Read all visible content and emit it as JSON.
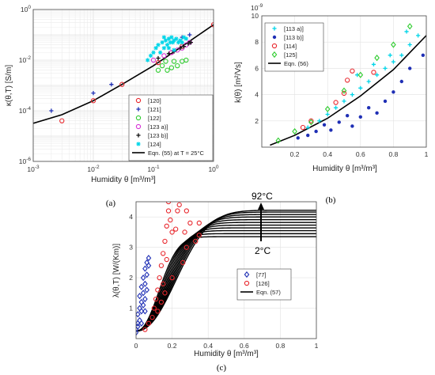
{
  "chart_data": [
    {
      "panel": "(a)",
      "type": "scatter",
      "xlabel": "Humidity θ [m³/m³]",
      "ylabel": "κ(θ,T) [S/m]",
      "xscale": "log",
      "yscale": "log",
      "xlim": [
        0.001,
        1
      ],
      "ylim": [
        1e-06,
        1
      ],
      "xticks": [
        "10^-3",
        "10^-2",
        "10^-1",
        "10^0"
      ],
      "yticks": [
        "10^-6",
        "10^-4",
        "10^-2",
        "10^0"
      ],
      "grid": true,
      "legend_position": "bottom-right",
      "series": [
        {
          "name": "[120]",
          "marker": "circle-open",
          "color": "#e8262c",
          "points": [
            [
              0.003,
              4e-05
            ],
            [
              0.01,
              0.00025
            ],
            [
              0.03,
              0.0011
            ],
            [
              0.12,
              0.008
            ],
            [
              0.2,
              0.02
            ],
            [
              0.3,
              0.035
            ],
            [
              1.0,
              0.25
            ]
          ]
        },
        {
          "name": "[121]",
          "marker": "plus",
          "color": "#1f2fb5",
          "points": [
            [
              0.002,
              0.0001
            ],
            [
              0.01,
              0.0005
            ],
            [
              0.02,
              0.0011
            ],
            [
              0.3,
              0.08
            ],
            [
              0.4,
              0.1
            ]
          ]
        },
        {
          "name": "[122]",
          "marker": "circle-open",
          "color": "#2ecc2e",
          "points": [
            [
              0.12,
              0.004
            ],
            [
              0.14,
              0.006
            ],
            [
              0.17,
              0.004
            ],
            [
              0.2,
              0.005
            ],
            [
              0.25,
              0.006
            ],
            [
              0.3,
              0.009
            ],
            [
              0.35,
              0.01
            ],
            [
              0.16,
              0.009
            ],
            [
              0.22,
              0.009
            ]
          ]
        },
        {
          "name": "[123 a)]",
          "marker": "circle-open",
          "color": "#d633d6",
          "points": [
            [
              0.1,
              0.01
            ],
            [
              0.15,
              0.015
            ],
            [
              0.2,
              0.02
            ],
            [
              0.25,
              0.025
            ],
            [
              0.3,
              0.03
            ],
            [
              0.35,
              0.04
            ],
            [
              0.4,
              0.05
            ]
          ]
        },
        {
          "name": "[123 b)]",
          "marker": "plus",
          "color": "#111111",
          "points": [
            [
              0.12,
              0.012
            ],
            [
              0.18,
              0.018
            ],
            [
              0.22,
              0.022
            ],
            [
              0.28,
              0.03
            ],
            [
              0.32,
              0.035
            ],
            [
              0.38,
              0.045
            ],
            [
              0.42,
              0.05
            ]
          ]
        },
        {
          "name": "[124]",
          "marker": "asterisk",
          "color": "#00d5e8",
          "points": [
            [
              0.08,
              0.01
            ],
            [
              0.09,
              0.015
            ],
            [
              0.1,
              0.02
            ],
            [
              0.11,
              0.03
            ],
            [
              0.12,
              0.04
            ],
            [
              0.13,
              0.02
            ],
            [
              0.14,
              0.05
            ],
            [
              0.15,
              0.03
            ],
            [
              0.16,
              0.06
            ],
            [
              0.17,
              0.04
            ],
            [
              0.18,
              0.07
            ],
            [
              0.19,
              0.05
            ],
            [
              0.2,
              0.08
            ],
            [
              0.21,
              0.05
            ],
            [
              0.22,
              0.06
            ],
            [
              0.24,
              0.07
            ],
            [
              0.26,
              0.05
            ],
            [
              0.28,
              0.06
            ],
            [
              0.3,
              0.05
            ],
            [
              0.32,
              0.08
            ],
            [
              0.35,
              0.07
            ],
            [
              0.15,
              0.08
            ],
            [
              0.18,
              0.03
            ],
            [
              0.22,
              0.025
            ]
          ]
        }
      ],
      "fit_line": {
        "name": "Eqn. (55) at T = 25°C",
        "color": "#000000",
        "points": [
          [
            0.001,
            3.2e-05
          ],
          [
            0.003,
            7e-05
          ],
          [
            0.01,
            0.00025
          ],
          [
            0.03,
            0.0011
          ],
          [
            0.1,
            0.006
          ],
          [
            0.3,
            0.035
          ],
          [
            1.0,
            0.25
          ]
        ]
      }
    },
    {
      "panel": "(b)",
      "type": "scatter",
      "xlabel": "Humidity θ [m³/m³]",
      "ylabel": "k(θ) [m²/Vs]",
      "yexponent": "10^-9",
      "xlim": [
        0,
        1
      ],
      "ylim": [
        0,
        10
      ],
      "xticks": [
        "0.2",
        "0.4",
        "0.6",
        "0.8",
        "1"
      ],
      "yticks": [
        "2",
        "4",
        "6",
        "8",
        "10"
      ],
      "grid": true,
      "legend_position": "top-left",
      "series": [
        {
          "name": "[113 a)]",
          "marker": "plus",
          "color": "#00d5e8",
          "points": [
            [
              0.28,
              1.5
            ],
            [
              0.35,
              2.0
            ],
            [
              0.4,
              2.5
            ],
            [
              0.45,
              3.0
            ],
            [
              0.5,
              3.5
            ],
            [
              0.55,
              4.0
            ],
            [
              0.6,
              4.5
            ],
            [
              0.65,
              5.0
            ],
            [
              0.7,
              5.5
            ],
            [
              0.75,
              6.0
            ],
            [
              0.8,
              6.5
            ],
            [
              0.85,
              7.0
            ],
            [
              0.9,
              7.8
            ],
            [
              0.95,
              8.5
            ],
            [
              0.58,
              5.5
            ],
            [
              0.68,
              6.3
            ],
            [
              0.78,
              7.0
            ],
            [
              0.88,
              8.8
            ]
          ]
        },
        {
          "name": "[113 b)]",
          "marker": "dot",
          "color": "#1f2fb5",
          "points": [
            [
              0.22,
              0.7
            ],
            [
              0.28,
              0.9
            ],
            [
              0.33,
              1.2
            ],
            [
              0.38,
              1.7
            ],
            [
              0.42,
              1.3
            ],
            [
              0.47,
              1.9
            ],
            [
              0.52,
              2.4
            ],
            [
              0.55,
              1.6
            ],
            [
              0.6,
              2.3
            ],
            [
              0.65,
              3.0
            ],
            [
              0.7,
              2.6
            ],
            [
              0.75,
              3.5
            ],
            [
              0.8,
              4.2
            ],
            [
              0.85,
              5.0
            ],
            [
              0.9,
              6.0
            ],
            [
              0.98,
              7.0
            ]
          ]
        },
        {
          "name": "[114]",
          "marker": "circle-open",
          "color": "#e8262c",
          "points": [
            [
              0.25,
              1.5
            ],
            [
              0.3,
              2.0
            ],
            [
              0.45,
              3.4
            ],
            [
              0.5,
              4.1
            ],
            [
              0.52,
              5.1
            ],
            [
              0.55,
              5.8
            ],
            [
              0.68,
              5.7
            ]
          ]
        },
        {
          "name": "[125]",
          "marker": "diamond-open",
          "color": "#2ecc2e",
          "points": [
            [
              0.1,
              0.5
            ],
            [
              0.2,
              1.2
            ],
            [
              0.3,
              1.9
            ],
            [
              0.4,
              2.9
            ],
            [
              0.5,
              4.3
            ],
            [
              0.6,
              5.5
            ],
            [
              0.7,
              6.8
            ],
            [
              0.8,
              7.8
            ],
            [
              0.9,
              9.2
            ]
          ]
        }
      ],
      "fit_line": {
        "name": "Eqn. (56)",
        "color": "#000000",
        "points": [
          [
            0.05,
            0.15
          ],
          [
            0.2,
            0.9
          ],
          [
            0.4,
            2.2
          ],
          [
            0.6,
            3.9
          ],
          [
            0.8,
            5.9
          ],
          [
            1.0,
            8.5
          ]
        ]
      }
    },
    {
      "panel": "(c)",
      "type": "line",
      "xlabel": "Humidity θ [m³/m³]",
      "ylabel": "λ(θ,T) [W/(Km)]",
      "xlim": [
        0,
        1
      ],
      "ylim": [
        0,
        4.5
      ],
      "xticks": [
        "0",
        "0.2",
        "0.4",
        "0.6",
        "0.8",
        "1"
      ],
      "yticks": [
        "1",
        "2",
        "3",
        "4"
      ],
      "grid": true,
      "legend_position": "center-right",
      "annotations": [
        {
          "text": "92°C",
          "x": 0.67,
          "y": 4.4
        },
        {
          "text": "2°C",
          "x": 0.67,
          "y": 2.75
        }
      ],
      "curves": {
        "name": "Eqn. (57)",
        "color": "#000000",
        "count": 11,
        "T_labels": [
          "2°C",
          "92°C"
        ],
        "plateau": [
          3.35,
          3.45,
          3.55,
          3.64,
          3.73,
          3.82,
          3.91,
          4.0,
          4.08,
          4.16,
          4.22
        ],
        "offset": [
          0.27,
          0.29,
          0.31,
          0.33,
          0.35,
          0.37,
          0.39,
          0.41,
          0.43,
          0.45,
          0.47
        ]
      },
      "series": [
        {
          "name": "[77]",
          "marker": "diamond-open",
          "color": "#1f2fb5",
          "points": [
            [
              0.0,
              0.3
            ],
            [
              0.01,
              0.5
            ],
            [
              0.01,
              0.8
            ],
            [
              0.02,
              1.0
            ],
            [
              0.02,
              1.4
            ],
            [
              0.03,
              1.2
            ],
            [
              0.03,
              1.7
            ],
            [
              0.04,
              1.5
            ],
            [
              0.04,
              2.0
            ],
            [
              0.05,
              1.8
            ],
            [
              0.05,
              2.3
            ],
            [
              0.06,
              2.1
            ],
            [
              0.06,
              2.5
            ],
            [
              0.07,
              2.4
            ],
            [
              0.07,
              2.65
            ],
            [
              0.02,
              0.6
            ],
            [
              0.03,
              0.9
            ],
            [
              0.04,
              1.1
            ],
            [
              0.05,
              1.3
            ],
            [
              0.06,
              1.6
            ],
            [
              0.01,
              0.4
            ],
            [
              0.0,
              0.2
            ],
            [
              0.03,
              0.5
            ],
            [
              0.05,
              0.9
            ]
          ]
        },
        {
          "name": "[126]",
          "marker": "circle-open",
          "color": "#e8262c",
          "points": [
            [
              0.05,
              0.3
            ],
            [
              0.07,
              0.5
            ],
            [
              0.09,
              0.7
            ],
            [
              0.1,
              1.0
            ],
            [
              0.11,
              1.3
            ],
            [
              0.12,
              1.6
            ],
            [
              0.13,
              2.0
            ],
            [
              0.14,
              2.4
            ],
            [
              0.15,
              2.8
            ],
            [
              0.16,
              3.2
            ],
            [
              0.17,
              3.7
            ],
            [
              0.18,
              4.2
            ],
            [
              0.18,
              4.5
            ],
            [
              0.19,
              3.9
            ],
            [
              0.2,
              3.5
            ],
            [
              0.15,
              1.8
            ],
            [
              0.17,
              2.6
            ],
            [
              0.12,
              0.9
            ],
            [
              0.14,
              1.2
            ],
            [
              0.16,
              1.5
            ],
            [
              0.22,
              3.6
            ],
            [
              0.23,
              4.2
            ],
            [
              0.24,
              4.4
            ],
            [
              0.27,
              3.5
            ],
            [
              0.28,
              4.2
            ],
            [
              0.28,
              3.0
            ],
            [
              0.3,
              3.8
            ],
            [
              0.33,
              3.2
            ],
            [
              0.35,
              3.4
            ],
            [
              0.35,
              3.8
            ],
            [
              0.26,
              2.5
            ],
            [
              0.2,
              2.0
            ]
          ]
        }
      ]
    }
  ],
  "text": {
    "a": {
      "xlabel": "Humidity θ [m³/m³]",
      "ylabel": "κ(θ,T) [S/m]",
      "legend": [
        "[120]",
        "[121]",
        "[122]",
        "[123 a)]",
        "[123 b)]",
        "[124]",
        "Eqn. (55) at T = 25°C"
      ],
      "caption": "(a)"
    },
    "b": {
      "xlabel": "Humidity θ [m³/m³]",
      "ylabel": "k(θ) [m²/Vs]",
      "exponent": "10",
      "exponent_power": "-9",
      "legend": [
        "[113 a)]",
        "[113 b)]",
        "[114]",
        "[125]",
        "Eqn. (56)"
      ],
      "caption": "(b)"
    },
    "c": {
      "xlabel": "Humidity θ [m³/m³]",
      "ylabel": "λ(θ,T) [W/(Km)]",
      "legend": [
        "[77]",
        "[126]",
        "Eqn. (57)"
      ],
      "ann_top": "92°C",
      "ann_bottom": "2°C",
      "caption": "(c)"
    }
  }
}
